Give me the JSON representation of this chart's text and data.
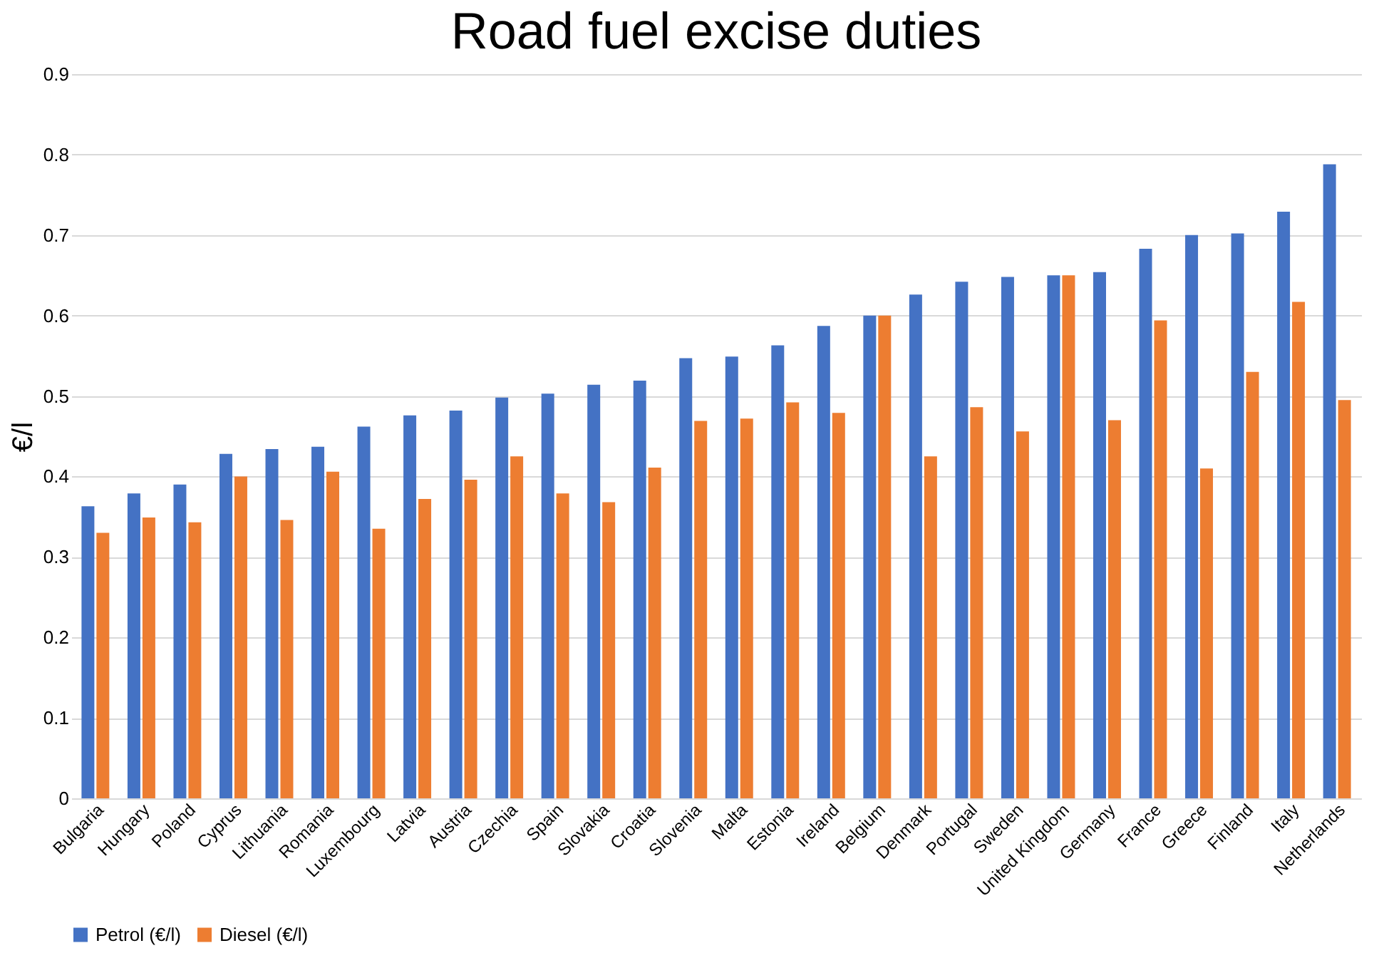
{
  "chart_data": {
    "type": "bar",
    "title": "Road fuel excise duties",
    "ylabel": "€/l",
    "categories": [
      "Bulgaria",
      "Hungary",
      "Poland",
      "Cyprus",
      "Lithuania",
      "Romania",
      "Luxembourg",
      "Latvia",
      "Austria",
      "Czechia",
      "Spain",
      "Slovakia",
      "Croatia",
      "Slovenia",
      "Malta",
      "Estonia",
      "Ireland",
      "Belgium",
      "Denmark",
      "Portugal",
      "Sweden",
      "United Kingdom",
      "Germany",
      "France",
      "Greece",
      "Finland",
      "Italy",
      "Netherlands"
    ],
    "series": [
      {
        "name": "Petrol (€/l)",
        "color": "#4472c4",
        "values": [
          0.363,
          0.379,
          0.39,
          0.428,
          0.434,
          0.437,
          0.462,
          0.476,
          0.482,
          0.498,
          0.503,
          0.514,
          0.519,
          0.547,
          0.549,
          0.563,
          0.587,
          0.6,
          0.626,
          0.642,
          0.648,
          0.65,
          0.654,
          0.683,
          0.7,
          0.702,
          0.729,
          0.788
        ]
      },
      {
        "name": "Diesel (€/l)",
        "color": "#ed7d31",
        "values": [
          0.33,
          0.349,
          0.343,
          0.4,
          0.346,
          0.406,
          0.335,
          0.372,
          0.396,
          0.425,
          0.379,
          0.368,
          0.411,
          0.469,
          0.472,
          0.492,
          0.479,
          0.6,
          0.425,
          0.486,
          0.456,
          0.65,
          0.47,
          0.594,
          0.41,
          0.53,
          0.617,
          0.495
        ]
      }
    ],
    "ylim": [
      0,
      0.9
    ],
    "yticks": [
      0,
      0.1,
      0.2,
      0.3,
      0.4,
      0.5,
      0.6,
      0.7,
      0.8,
      0.9
    ],
    "grid": "y",
    "legend": "bottom"
  }
}
